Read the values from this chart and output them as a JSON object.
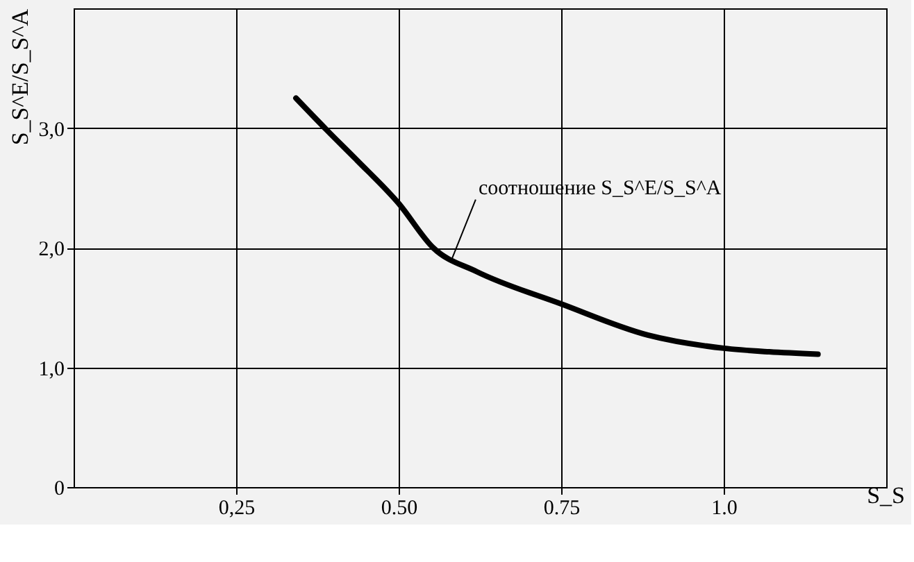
{
  "chart_data": {
    "type": "line",
    "x": [
      0.342,
      0.39,
      0.436,
      0.5,
      0.553,
      0.62,
      0.75,
      0.883,
      1.0,
      1.07,
      1.145
    ],
    "series": [
      {
        "color": "#000000",
        "values": [
          3.25,
          2.98,
          2.73,
          2.37,
          2.0,
          1.8,
          1.53,
          1.27,
          1.16,
          1.13,
          1.11
        ]
      }
    ],
    "xlim": [
      0,
      1.25
    ],
    "ylim": [
      0,
      4
    ],
    "xticks": [
      {
        "value": 0.25,
        "label": "0,25"
      },
      {
        "value": 0.5,
        "label": "0.50"
      },
      {
        "value": 0.75,
        "label": "0.75"
      },
      {
        "value": 1.0,
        "label": "1.0"
      }
    ],
    "yticks": [
      0,
      {
        "value": 1,
        "label": "1,0"
      },
      {
        "value": 2,
        "label": "2,0"
      },
      {
        "value": 3,
        "label": "3,0"
      }
    ],
    "xlabel": "S_S",
    "ylabel": "S_S^E/S_S^A",
    "annotations": [
      {
        "text": "соотношение S_S^E/S_S^A",
        "x": 0.58,
        "y": 1.88
      }
    ],
    "grid": true,
    "marker": "none",
    "line_style": "solid"
  }
}
